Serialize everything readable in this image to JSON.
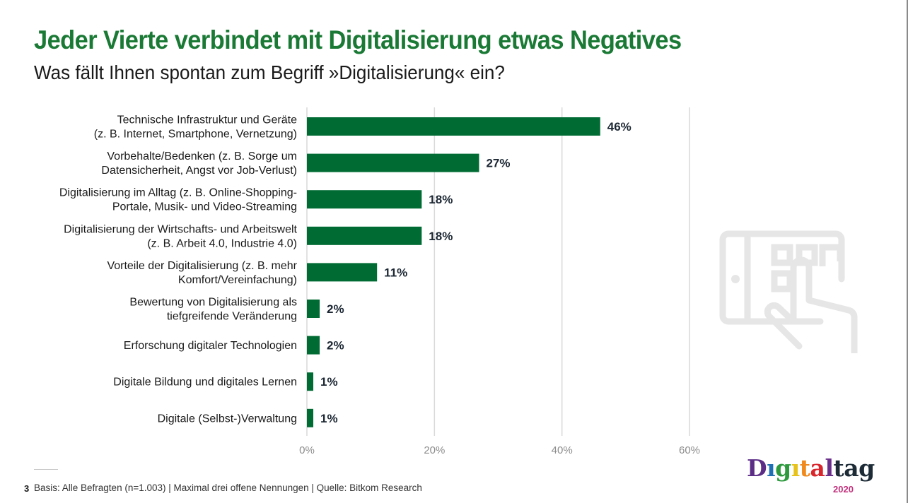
{
  "header": {
    "title": "Jeder Vierte verbindet mit Digitalisierung etwas Negatives",
    "subtitle": "Was fällt Ihnen spontan zum Begriff »Digitalisierung« ein?"
  },
  "chart_data": {
    "type": "bar",
    "orientation": "horizontal",
    "title": "Jeder Vierte verbindet mit Digitalisierung etwas Negatives",
    "subtitle": "Was fällt Ihnen spontan zum Begriff »Digitalisierung« ein?",
    "xlabel": "",
    "ylabel": "",
    "xlim": [
      0,
      60
    ],
    "x_ticks": [
      0,
      20,
      40,
      60
    ],
    "x_tick_labels": [
      "0%",
      "20%",
      "40%",
      "60%"
    ],
    "grid": true,
    "legend": "none",
    "bar_color": "#006b33",
    "categories": [
      [
        "Technische Infrastruktur und Geräte",
        "(z. B. Internet, Smartphone, Vernetzung)"
      ],
      [
        "Vorbehalte/Bedenken (z. B. Sorge um",
        "Datensicherheit, Angst vor Job-Verlust)"
      ],
      [
        "Digitalisierung im Alltag (z. B. Online-Shopping-",
        "Portale, Musik- und Video-Streaming"
      ],
      [
        "Digitalisierung der Wirtschafts- und Arbeitswelt",
        "(z. B. Arbeit 4.0, Industrie 4.0)"
      ],
      [
        "Vorteile der Digitalisierung (z. B. mehr",
        "Komfort/Vereinfachung)"
      ],
      [
        "Bewertung von Digitalisierung als",
        "tiefgreifende Veränderung"
      ],
      [
        "Erforschung digitaler Technologien"
      ],
      [
        "Digitale Bildung und digitales Lernen"
      ],
      [
        "Digitale (Selbst-)Verwaltung"
      ]
    ],
    "values": [
      46,
      27,
      18,
      18,
      11,
      2,
      2,
      1,
      1
    ],
    "value_labels": [
      "46%",
      "27%",
      "18%",
      "18%",
      "11%",
      "2%",
      "2%",
      "1%",
      "1%"
    ]
  },
  "decoration": {
    "icon": "tablet-touch-icon"
  },
  "footer": {
    "page_number": "3",
    "note": "Basis: Alle Befragten (n=1.003) | Maximal drei offene Nennungen | Quelle: Bitkom Research"
  },
  "logo": {
    "letters": [
      {
        "ch": "D",
        "color": "#5b2d86"
      },
      {
        "ch": "ı",
        "color": "#1f6fb5"
      },
      {
        "ch": "g",
        "color": "#2e9a3e"
      },
      {
        "ch": "ı",
        "color": "#e6c21a"
      },
      {
        "ch": "t",
        "color": "#f08a1c"
      },
      {
        "ch": "a",
        "color": "#d9262c"
      },
      {
        "ch": "l",
        "color": "#6a2f8a"
      },
      {
        "ch": "t",
        "color": "#1c2b36"
      },
      {
        "ch": "a",
        "color": "#1c2b36"
      },
      {
        "ch": "g",
        "color": "#1c2b36"
      }
    ],
    "year": "2020",
    "year_color": "#c2307c"
  }
}
